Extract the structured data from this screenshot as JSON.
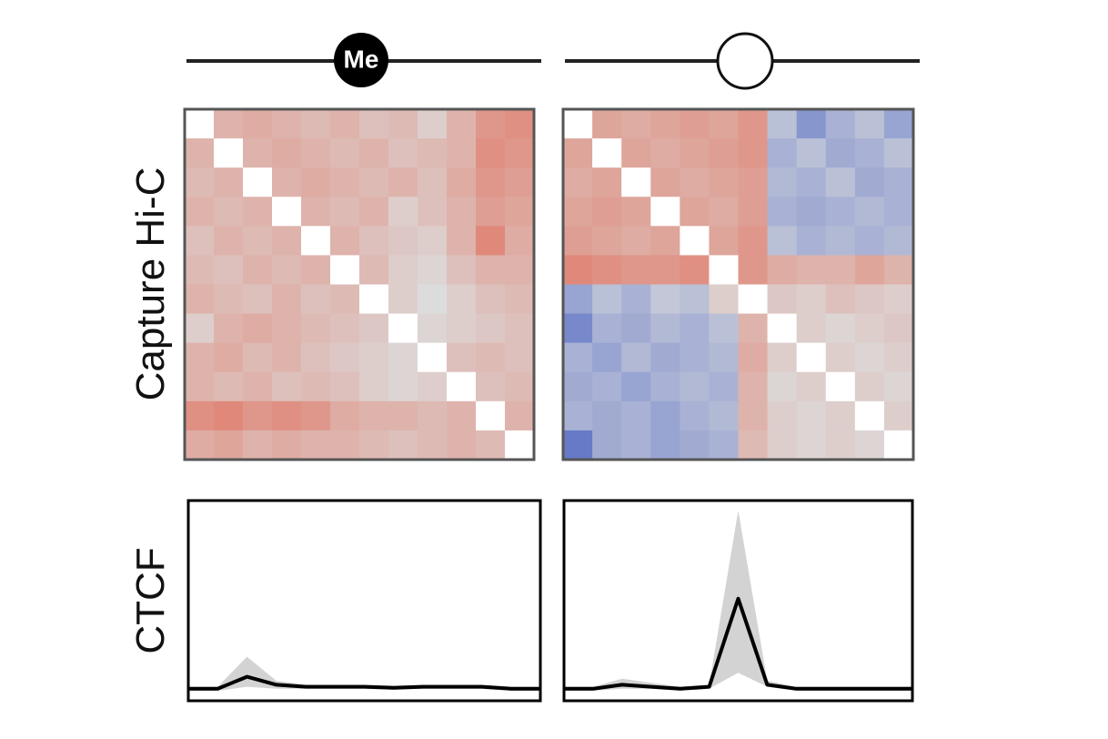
{
  "labels": {
    "me": "Me",
    "hic": "Capture Hi-C",
    "ctcf": "CTCF"
  },
  "chart_data": [
    {
      "type": "heatmap",
      "vlim": [
        -1,
        1
      ],
      "colors": [
        "#3350c0",
        "#dcdcdc",
        "#e2523a"
      ],
      "values": [
        [
          null,
          0.3,
          0.35,
          0.3,
          0.25,
          0.3,
          0.2,
          0.25,
          0.1,
          0.3,
          0.5,
          0.55
        ],
        [
          0.3,
          null,
          0.3,
          0.35,
          0.3,
          0.25,
          0.3,
          0.2,
          0.25,
          0.3,
          0.55,
          0.5
        ],
        [
          0.25,
          0.3,
          null,
          0.3,
          0.35,
          0.3,
          0.25,
          0.3,
          0.2,
          0.35,
          0.5,
          0.45
        ],
        [
          0.3,
          0.25,
          0.3,
          null,
          0.3,
          0.25,
          0.3,
          0.1,
          0.2,
          0.3,
          0.45,
          0.4
        ],
        [
          0.2,
          0.3,
          0.25,
          0.3,
          null,
          0.3,
          0.2,
          0.15,
          0.1,
          0.3,
          0.6,
          0.35
        ],
        [
          0.25,
          0.2,
          0.3,
          0.25,
          0.3,
          null,
          0.25,
          0.1,
          0.05,
          0.2,
          0.3,
          0.3
        ],
        [
          0.3,
          0.25,
          0.2,
          0.3,
          0.2,
          0.25,
          null,
          0.1,
          0.0,
          0.1,
          0.2,
          0.25
        ],
        [
          0.1,
          0.3,
          0.35,
          0.3,
          0.25,
          0.2,
          0.15,
          null,
          0.05,
          0.1,
          0.15,
          0.2
        ],
        [
          0.3,
          0.35,
          0.25,
          0.3,
          0.2,
          0.15,
          0.1,
          0.05,
          null,
          0.2,
          0.25,
          0.2
        ],
        [
          0.3,
          0.25,
          0.3,
          0.2,
          0.25,
          0.2,
          0.1,
          0.05,
          0.1,
          null,
          0.2,
          0.25
        ],
        [
          0.55,
          0.6,
          0.5,
          0.55,
          0.5,
          0.35,
          0.3,
          0.3,
          0.25,
          0.3,
          null,
          0.3
        ],
        [
          0.35,
          0.4,
          0.3,
          0.35,
          0.3,
          0.3,
          0.25,
          0.2,
          0.25,
          0.3,
          0.25,
          null
        ]
      ]
    },
    {
      "type": "heatmap",
      "vlim": [
        -1,
        1
      ],
      "colors": [
        "#3350c0",
        "#dcdcdc",
        "#e2523a"
      ],
      "values": [
        [
          null,
          0.4,
          0.35,
          0.4,
          0.45,
          0.4,
          0.5,
          -0.2,
          -0.5,
          -0.3,
          -0.2,
          -0.4
        ],
        [
          0.4,
          null,
          0.4,
          0.35,
          0.4,
          0.45,
          0.5,
          -0.3,
          -0.2,
          -0.35,
          -0.3,
          -0.2
        ],
        [
          0.35,
          0.4,
          null,
          0.4,
          0.35,
          0.4,
          0.45,
          -0.25,
          -0.3,
          -0.2,
          -0.35,
          -0.3
        ],
        [
          0.4,
          0.45,
          0.4,
          null,
          0.4,
          0.35,
          0.45,
          -0.3,
          -0.35,
          -0.3,
          -0.25,
          -0.3
        ],
        [
          0.45,
          0.4,
          0.35,
          0.4,
          null,
          0.4,
          0.5,
          -0.2,
          -0.3,
          -0.25,
          -0.3,
          -0.25
        ],
        [
          0.6,
          0.55,
          0.5,
          0.5,
          0.55,
          null,
          0.5,
          0.35,
          0.3,
          0.3,
          0.4,
          0.3
        ],
        [
          -0.4,
          -0.2,
          -0.3,
          -0.15,
          -0.2,
          0.1,
          null,
          0.15,
          0.1,
          0.2,
          0.15,
          0.1
        ],
        [
          -0.6,
          -0.3,
          -0.35,
          -0.25,
          -0.3,
          -0.2,
          0.3,
          null,
          0.1,
          0.05,
          0.1,
          0.15
        ],
        [
          -0.3,
          -0.4,
          -0.25,
          -0.35,
          -0.3,
          -0.25,
          0.35,
          0.1,
          null,
          0.1,
          0.05,
          0.1
        ],
        [
          -0.35,
          -0.3,
          -0.4,
          -0.3,
          -0.25,
          -0.3,
          0.3,
          0.05,
          0.1,
          null,
          0.1,
          0.05
        ],
        [
          -0.3,
          -0.35,
          -0.3,
          -0.4,
          -0.3,
          -0.25,
          0.3,
          0.1,
          0.05,
          0.1,
          null,
          0.1
        ],
        [
          -0.7,
          -0.35,
          -0.3,
          -0.4,
          -0.35,
          -0.3,
          0.25,
          0.1,
          0.05,
          0.1,
          0.05,
          null
        ]
      ]
    },
    {
      "type": "line",
      "x": [
        0,
        1,
        2,
        3,
        4,
        5,
        6,
        7,
        8,
        9,
        10,
        11,
        12
      ],
      "xlim": [
        0,
        12
      ],
      "ylim": [
        0,
        1
      ],
      "color": "#000000",
      "band_color": "#d3d3d3",
      "values": [
        0.06,
        0.06,
        0.12,
        0.08,
        0.07,
        0.07,
        0.07,
        0.065,
        0.07,
        0.07,
        0.07,
        0.06,
        0.06
      ],
      "lower": [
        0.05,
        0.05,
        0.07,
        0.06,
        0.06,
        0.06,
        0.06,
        0.055,
        0.06,
        0.06,
        0.06,
        0.05,
        0.05
      ],
      "upper": [
        0.07,
        0.07,
        0.22,
        0.1,
        0.08,
        0.08,
        0.08,
        0.075,
        0.08,
        0.08,
        0.08,
        0.07,
        0.07
      ]
    },
    {
      "type": "line",
      "x": [
        0,
        1,
        2,
        3,
        4,
        5,
        6,
        7,
        8,
        9,
        10,
        11,
        12
      ],
      "xlim": [
        0,
        12
      ],
      "ylim": [
        0,
        1
      ],
      "color": "#000000",
      "band_color": "#d3d3d3",
      "values": [
        0.06,
        0.06,
        0.08,
        0.07,
        0.06,
        0.07,
        0.51,
        0.08,
        0.06,
        0.06,
        0.06,
        0.06,
        0.06
      ],
      "lower": [
        0.05,
        0.05,
        0.06,
        0.06,
        0.05,
        0.06,
        0.14,
        0.07,
        0.05,
        0.05,
        0.05,
        0.05,
        0.05
      ],
      "upper": [
        0.07,
        0.07,
        0.11,
        0.09,
        0.07,
        0.08,
        0.95,
        0.1,
        0.07,
        0.07,
        0.07,
        0.07,
        0.07
      ]
    }
  ]
}
